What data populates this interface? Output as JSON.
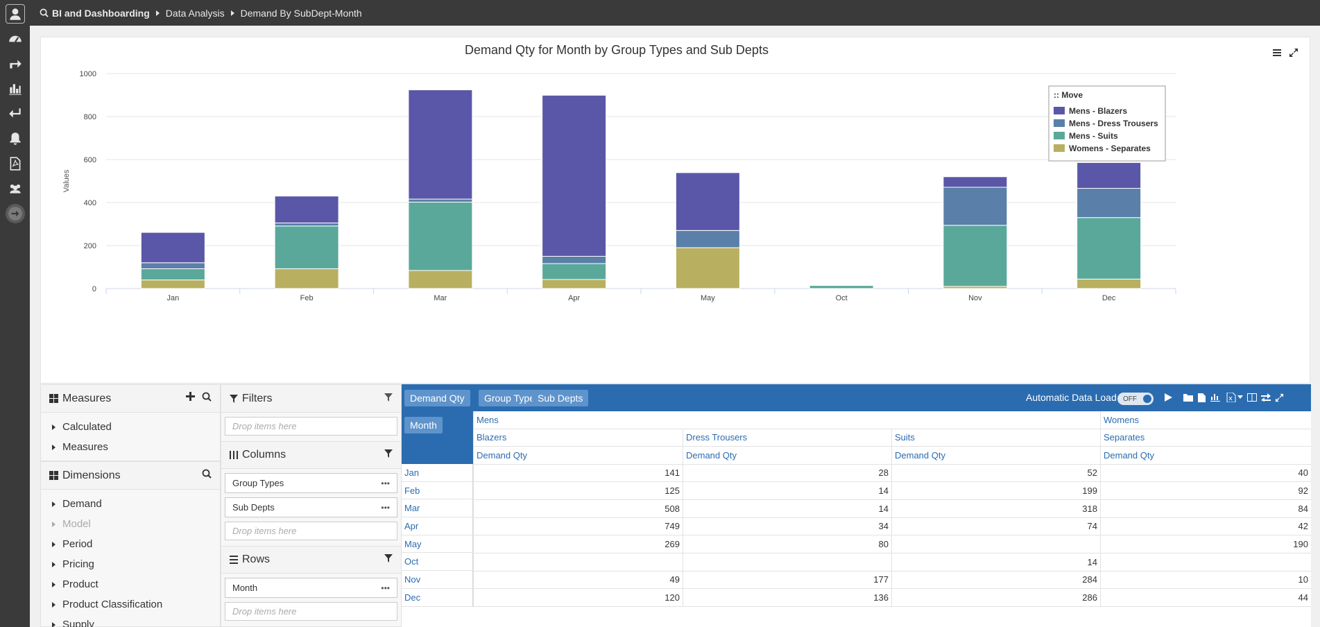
{
  "breadcrumb": {
    "items": [
      "BI and Dashboarding",
      "Data Analysis",
      "Demand By SubDept-Month"
    ]
  },
  "leftbar": {
    "icons": [
      "user-icon",
      "dashboard-icon",
      "forward-icon",
      "chart-icon",
      "return-icon",
      "bell-icon",
      "pdf-icon",
      "users-icon",
      "arrow-right-icon"
    ]
  },
  "chart_data": {
    "type": "bar",
    "stacked": true,
    "title": "Demand Qty for Month by Group Types and Sub Depts",
    "xlabel": "",
    "ylabel": "Values",
    "ylim": [
      0,
      1000
    ],
    "yticks": [
      "0",
      "200",
      "400",
      "600",
      "800",
      "1000"
    ],
    "categories": [
      "Jan",
      "Feb",
      "Mar",
      "Apr",
      "May",
      "Oct",
      "Nov",
      "Dec"
    ],
    "legend_title": ":: Move",
    "legend_position": "top-right",
    "grid": true,
    "series": [
      {
        "name": "Womens - Separates",
        "color": "#b8b060",
        "values": [
          40,
          92,
          84,
          42,
          190,
          0,
          10,
          44
        ]
      },
      {
        "name": "Mens - Suits",
        "color": "#5aa89a",
        "values": [
          52,
          199,
          318,
          74,
          0,
          14,
          284,
          286
        ]
      },
      {
        "name": "Mens - Dress Trousers",
        "color": "#5a7fa8",
        "values": [
          28,
          14,
          14,
          34,
          80,
          0,
          177,
          136
        ]
      },
      {
        "name": "Mens - Blazers",
        "color": "#5a57a8",
        "values": [
          141,
          125,
          508,
          749,
          269,
          0,
          49,
          120
        ]
      }
    ],
    "legend_order": [
      "Mens - Blazers",
      "Mens - Dress Trousers",
      "Mens - Suits",
      "Womens - Separates"
    ]
  },
  "measures_panel": {
    "title": "Measures",
    "items": [
      "Calculated",
      "Measures"
    ]
  },
  "dimensions_panel": {
    "title": "Dimensions",
    "items": [
      "Demand",
      "Model",
      "Period",
      "Pricing",
      "Product",
      "Product Classification",
      "Supply"
    ]
  },
  "filters_panel": {
    "filters_title": "Filters",
    "columns_title": "Columns",
    "rows_title": "Rows",
    "drop_placeholder": "Drop items here",
    "column_fields": [
      "Group Types",
      "Sub Depts"
    ],
    "row_fields": [
      "Month"
    ],
    "field_menu": "•••"
  },
  "pivot": {
    "measure_chip": "Demand Qty",
    "column_chips": [
      "Group Types",
      "Sub Depts"
    ],
    "row_chip": "Month",
    "auto_load_label": "Automatic Data Load",
    "auto_load_state": "OFF",
    "group_headers": [
      "Mens",
      "Womens"
    ],
    "sub_headers": [
      "Blazers",
      "Dress Trousers",
      "Suits",
      "Separates"
    ],
    "measure_headers": [
      "Demand Qty",
      "Demand Qty",
      "Demand Qty",
      "Demand Qty"
    ],
    "rows": [
      {
        "label": "Jan",
        "values": [
          "141",
          "28",
          "52",
          "40"
        ]
      },
      {
        "label": "Feb",
        "values": [
          "125",
          "14",
          "199",
          "92"
        ]
      },
      {
        "label": "Mar",
        "values": [
          "508",
          "14",
          "318",
          "84"
        ]
      },
      {
        "label": "Apr",
        "values": [
          "749",
          "34",
          "74",
          "42"
        ]
      },
      {
        "label": "May",
        "values": [
          "269",
          "80",
          "",
          "190"
        ]
      },
      {
        "label": "Oct",
        "values": [
          "",
          "",
          "14",
          ""
        ]
      },
      {
        "label": "Nov",
        "values": [
          "49",
          "177",
          "284",
          "10"
        ]
      },
      {
        "label": "Dec",
        "values": [
          "120",
          "136",
          "286",
          "44"
        ]
      }
    ]
  }
}
